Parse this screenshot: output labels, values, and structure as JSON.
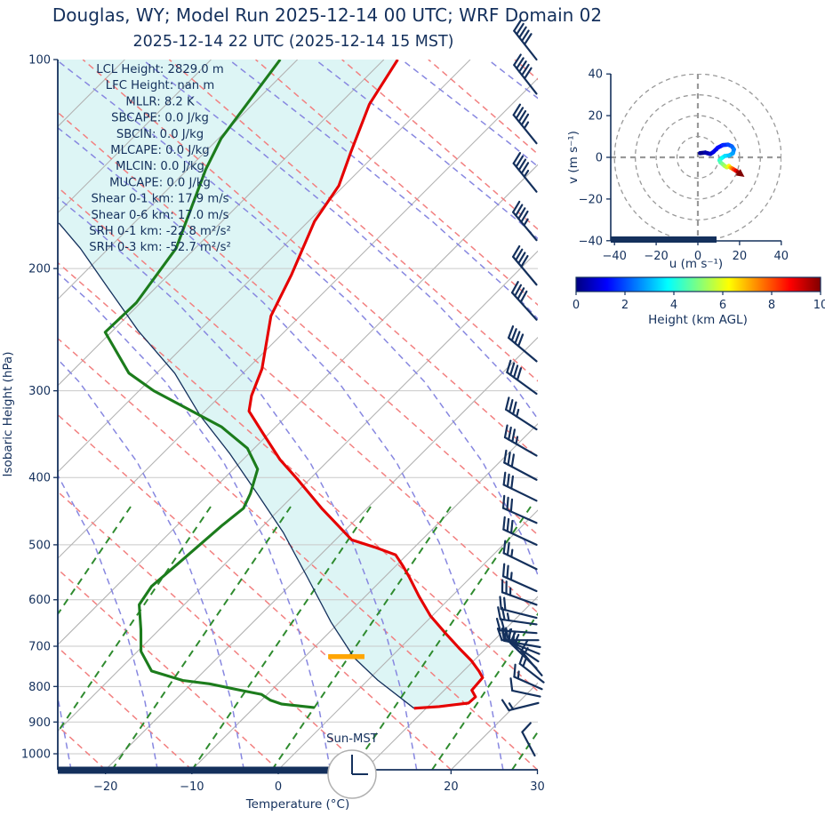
{
  "title": "Douglas, WY; Model Run 2025-12-14 00 UTC; WRF Domain 02",
  "subtitle": "2025-12-14 22 UTC  (2025-12-14 15 MST)",
  "colors": {
    "text_navy": "#14305c",
    "temperature": "#e50000",
    "dewpoint": "#1c7c1c",
    "parcel": "#14305c",
    "cape_fill": "#ddf5f5",
    "dry_adiabat": "#f28080",
    "moist_adiabat": "#8787e0",
    "mixing_ratio": "#2f8b2f",
    "isotherm": "#b3b3b3",
    "grid": "#c9c9c9",
    "lcl_marker": "#ffa500",
    "night_bar": "#14305c"
  },
  "chart_data": {
    "type": "skewt",
    "skewt": {
      "xlabel": "Temperature (°C)",
      "ylabel": "Isobaric Height (hPa)",
      "x_ticks": [
        -20,
        -10,
        0,
        10,
        20,
        30
      ],
      "xlim_c": [
        -25.5,
        30.2
      ],
      "p_ticks": [
        100,
        200,
        300,
        400,
        500,
        600,
        700,
        800,
        900,
        1000
      ],
      "p_lim": [
        100,
        1050
      ],
      "grid": true,
      "isotherm_step_c": 10,
      "adiabat_step_c": 10,
      "surface_clock_label": "Sun-MST",
      "clock_time": "15:00",
      "annotations": [
        "LCL Height: 2829.0 m",
        "LFC Height: nan m",
        "MLLR: 8.2 K",
        "SBCAPE: 0.0 J/kg",
        "SBCIN: 0.0 J/kg",
        "MLCAPE: 0.0 J/kg",
        "MLCIN: 0.0 J/kg",
        "MUCAPE: 0.0 J/kg",
        "Shear 0-1 km: 17.9 m/s",
        "Shear 0-6 km: 17.0 m/s",
        "SRH 0-1 km: -22.8 m²/s²",
        "SRH 0-3 km: -52.7 m²/s²"
      ],
      "temperature_c": [
        [
          100,
          -68.4
        ],
        [
          116,
          -66.5
        ],
        [
          136,
          -63.1
        ],
        [
          152,
          -60.6
        ],
        [
          171,
          -59.3
        ],
        [
          204,
          -55.8
        ],
        [
          234,
          -53.4
        ],
        [
          279,
          -48.3
        ],
        [
          305,
          -46.4
        ],
        [
          321,
          -44.9
        ],
        [
          345,
          -40.8
        ],
        [
          377,
          -35.7
        ],
        [
          403,
          -31.3
        ],
        [
          444,
          -25.1
        ],
        [
          492,
          -18.1
        ],
        [
          504,
          -14.6
        ],
        [
          517,
          -11.3
        ],
        [
          537,
          -9.1
        ],
        [
          557,
          -7.1
        ],
        [
          593,
          -3.8
        ],
        [
          633,
          -0.2
        ],
        [
          672,
          3.7
        ],
        [
          706,
          7.0
        ],
        [
          734,
          9.7
        ],
        [
          760,
          11.8
        ],
        [
          777,
          13.0
        ],
        [
          810,
          13.2
        ],
        [
          828,
          14.4
        ],
        [
          845,
          14.3
        ],
        [
          855,
          11.3
        ],
        [
          860,
          8.6
        ]
      ],
      "dewpoint_c": [
        [
          100,
          -82.0
        ],
        [
          130,
          -79.7
        ],
        [
          144,
          -77.9
        ],
        [
          187,
          -72.2
        ],
        [
          224,
          -70.5
        ],
        [
          247,
          -70.7
        ],
        [
          283,
          -63.2
        ],
        [
          300,
          -58.3
        ],
        [
          338,
          -46.3
        ],
        [
          363,
          -40.8
        ],
        [
          389,
          -37.2
        ],
        [
          422,
          -35.2
        ],
        [
          443,
          -34.3
        ],
        [
          469,
          -34.8
        ],
        [
          526,
          -35.4
        ],
        [
          574,
          -35.9
        ],
        [
          610,
          -35.2
        ],
        [
          663,
          -32.1
        ],
        [
          712,
          -29.6
        ],
        [
          760,
          -26.1
        ],
        [
          784,
          -21.4
        ],
        [
          793,
          -17.9
        ],
        [
          810,
          -13.6
        ],
        [
          821,
          -10.7
        ],
        [
          837,
          -9.0
        ],
        [
          848,
          -7.2
        ],
        [
          853,
          -5.1
        ],
        [
          858,
          -3.0
        ]
      ],
      "parcel_c": [
        [
          860,
          8.6
        ],
        [
          783,
          1.1
        ],
        [
          727,
          -4.2
        ],
        [
          646,
          -11.0
        ],
        [
          557,
          -18.9
        ],
        [
          480,
          -26.9
        ],
        [
          422,
          -34.4
        ],
        [
          369,
          -42.3
        ],
        [
          326,
          -50.0
        ],
        [
          283,
          -57.9
        ],
        [
          246,
          -67.0
        ],
        [
          214,
          -75.3
        ],
        [
          187,
          -83.3
        ],
        [
          172,
          -88.7
        ]
      ],
      "lcl": {
        "height_m": 2829.0,
        "pressure_hpa": 725,
        "t_from_c": -7.3,
        "t_to_c": -3.1
      },
      "night_bar_t_range_c": [
        -25.5,
        6.0
      ],
      "wind_barbs": [
        {
          "p": 100,
          "rot": 52,
          "full": 5,
          "half": 0
        },
        {
          "p": 112,
          "rot": 52,
          "full": 5,
          "half": 0
        },
        {
          "p": 132,
          "rot": 51,
          "full": 4,
          "half": 1
        },
        {
          "p": 155,
          "rot": 51,
          "full": 4,
          "half": 1
        },
        {
          "p": 182,
          "rot": 50,
          "full": 4,
          "half": 1
        },
        {
          "p": 211,
          "rot": 50,
          "full": 4,
          "half": 0
        },
        {
          "p": 237,
          "rot": 48,
          "full": 4,
          "half": 0
        },
        {
          "p": 272,
          "rot": 40,
          "full": 4,
          "half": 0
        },
        {
          "p": 303,
          "rot": 36,
          "full": 4,
          "half": 0
        },
        {
          "p": 341,
          "rot": 33,
          "full": 3,
          "half": 1
        },
        {
          "p": 372,
          "rot": 30,
          "full": 3,
          "half": 1
        },
        {
          "p": 403,
          "rot": 28,
          "full": 3,
          "half": 0
        },
        {
          "p": 432,
          "rot": 26,
          "full": 3,
          "half": 0
        },
        {
          "p": 465,
          "rot": 24,
          "full": 3,
          "half": 0
        },
        {
          "p": 500,
          "rot": 25,
          "full": 3,
          "half": 0
        },
        {
          "p": 542,
          "rot": 26,
          "full": 2,
          "half": 1
        },
        {
          "p": 583,
          "rot": 24,
          "full": 2,
          "half": 1
        },
        {
          "p": 610,
          "rot": 20,
          "full": 2,
          "half": 1
        },
        {
          "p": 637,
          "rot": 14,
          "full": 2,
          "half": 0
        },
        {
          "p": 651,
          "rot": 8,
          "full": 2,
          "half": 1
        },
        {
          "p": 670,
          "rot": 4,
          "full": 2,
          "half": 0
        },
        {
          "p": 686,
          "rot": 0,
          "full": 2,
          "half": 0,
          "dx": 2
        },
        {
          "p": 702,
          "rot": 10,
          "full": 2,
          "half": 0,
          "dx": 4
        },
        {
          "p": 718,
          "rot": 22,
          "full": 2,
          "half": 1,
          "dx": 3
        },
        {
          "p": 736,
          "rot": 34,
          "full": 2,
          "half": 1,
          "dx": 2
        },
        {
          "p": 753,
          "rot": 44,
          "full": 2,
          "half": 0
        },
        {
          "p": 771,
          "rot": 50,
          "full": 1,
          "half": 1,
          "dx": 6,
          "len": 36
        },
        {
          "p": 789,
          "rot": 38,
          "full": 1,
          "half": 1,
          "dx": 8,
          "len": 34
        },
        {
          "p": 807,
          "rot": 24,
          "full": 1,
          "half": 1,
          "dx": 6,
          "len": 34
        },
        {
          "p": 827,
          "rot": 12,
          "full": 1,
          "half": 0,
          "dx": 4,
          "len": 32
        },
        {
          "p": 845,
          "rot": -14,
          "full": 1,
          "half": 1,
          "dx": 2,
          "len": 34
        },
        {
          "p": 1006,
          "rot": 62,
          "full": 1,
          "half": 0,
          "dx": -2,
          "len": 30
        }
      ]
    },
    "hodograph": {
      "xlabel": "u (m s⁻¹)",
      "ylabel": "v (m s⁻¹)",
      "ticks": [
        -40,
        -20,
        0,
        20,
        40
      ],
      "lim": [
        -40,
        40
      ],
      "rings": [
        10,
        20,
        30,
        40
      ],
      "bar_u_range": [
        -40,
        9
      ],
      "trace_uvh": [
        [
          1,
          2,
          0
        ],
        [
          3.5,
          2.3,
          0.3
        ],
        [
          6,
          1.6,
          0.6
        ],
        [
          7.5,
          2.6,
          0.9
        ],
        [
          9.5,
          4.6,
          1.2
        ],
        [
          12,
          5.9,
          1.5
        ],
        [
          14.5,
          6.1,
          1.8
        ],
        [
          16.3,
          5.3,
          2.1
        ],
        [
          17.3,
          3.8,
          2.4
        ],
        [
          16.8,
          1.9,
          2.7
        ],
        [
          15,
          0.9,
          3.0
        ],
        [
          13,
          0.7,
          3.3
        ],
        [
          11.5,
          -0.3,
          3.6
        ],
        [
          10.4,
          -1.4,
          4.0
        ],
        [
          10.8,
          -2.4,
          4.4
        ],
        [
          11.8,
          -3.2,
          4.8
        ],
        [
          12.8,
          -4.1,
          5.2
        ],
        [
          13.9,
          -4.8,
          5.6
        ],
        [
          14.9,
          -4.1,
          6.0
        ],
        [
          15.6,
          -4.9,
          6.6
        ],
        [
          16.4,
          -5.3,
          7.2
        ],
        [
          17.2,
          -5.8,
          7.9
        ],
        [
          18.2,
          -6.4,
          8.6
        ],
        [
          19.2,
          -7.1,
          9.3
        ],
        [
          20.3,
          -7.9,
          10
        ]
      ]
    },
    "colorbar": {
      "label": "Height (km AGL)",
      "ticks": [
        0,
        2,
        4,
        6,
        8,
        10
      ],
      "min": 0,
      "max": 10,
      "colormap": "jet"
    }
  }
}
